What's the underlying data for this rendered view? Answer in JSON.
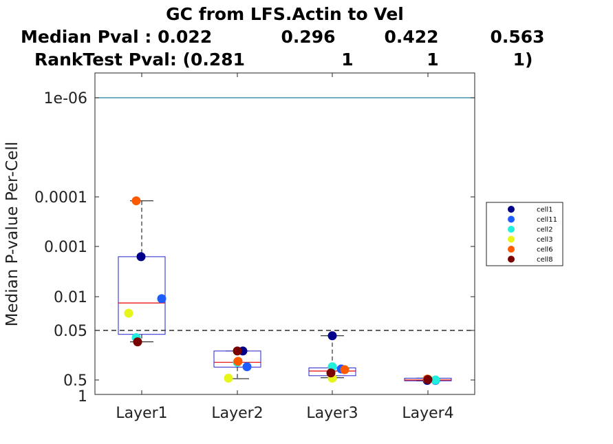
{
  "title_lines": [
    "GC from LFS.Actin to Vel",
    "Median Pval : 0.022",
    "0.296",
    "0.422",
    "0.563",
    "RankTest Pval: (0.281",
    "1",
    "1",
    "1)"
  ],
  "chart_data": {
    "type": "box",
    "title": "GC from LFS.Actin to Vel",
    "median_pval_label": "Median Pval :",
    "median_pvals": [
      "0.022",
      "0.296",
      "0.422",
      "0.563"
    ],
    "ranktest_label": "RankTest Pval:",
    "ranktest_pvals": [
      "(0.281",
      "1",
      "1",
      "1)"
    ],
    "ylabel": "Median P-value Per-Cell",
    "xlabel": "",
    "y_scale": "log (reversed)",
    "ylim": [
      1,
      3e-07
    ],
    "yticks": [
      {
        "label": "1e-06",
        "value": 1e-06
      },
      {
        "label": "0.0001",
        "value": 0.0001
      },
      {
        "label": "0.001",
        "value": 0.001
      },
      {
        "label": "0.01",
        "value": 0.01
      },
      {
        "label": "0.05",
        "value": 0.05
      },
      {
        "label": "0.5",
        "value": 0.5
      },
      {
        "label": "1",
        "value": 1
      }
    ],
    "categories": [
      "Layer1",
      "Layer2",
      "Layer3",
      "Layer4"
    ],
    "reference_lines": [
      {
        "value": 1e-06,
        "style": "solid",
        "color": "#1a7f9c"
      },
      {
        "value": 0.05,
        "style": "dashed",
        "color": "#000000"
      }
    ],
    "boxes": [
      {
        "category": "Layer1",
        "q1": 0.0016,
        "median": 0.0135,
        "q3": 0.06,
        "whisker_low": 0.00012,
        "whisker_high": 0.085
      },
      {
        "category": "Layer2",
        "q1": 0.13,
        "median": 0.22,
        "q3": 0.275,
        "whisker_low": 0.13,
        "whisker_high": 0.47
      },
      {
        "category": "Layer3",
        "q1": 0.285,
        "median": 0.33,
        "q3": 0.41,
        "whisker_low": 0.064,
        "whisker_high": 0.45
      },
      {
        "category": "Layer4",
        "q1": 0.46,
        "median": 0.5,
        "q3": 0.52,
        "whisker_low": 0.46,
        "whisker_high": 0.52
      }
    ],
    "series": [
      {
        "name": "cell1",
        "color": "#00008b",
        "values": [
          0.0016,
          0.13,
          0.064,
          0.51
        ]
      },
      {
        "name": "cell11",
        "color": "#1f5cff",
        "values": [
          0.011,
          0.27,
          0.3,
          0.51
        ]
      },
      {
        "name": "cell2",
        "color": "#22eedd",
        "values": [
          0.07,
          0.22,
          0.27,
          0.5
        ]
      },
      {
        "name": "cell3",
        "color": "#e8f51a",
        "values": [
          0.022,
          0.46,
          0.46,
          0.48
        ]
      },
      {
        "name": "cell6",
        "color": "#ff5a00",
        "values": [
          0.00012,
          0.21,
          0.31,
          0.48
        ]
      },
      {
        "name": "cell8",
        "color": "#7a0000",
        "values": [
          0.085,
          0.13,
          0.36,
          0.49
        ]
      }
    ],
    "legend": {
      "position": "right",
      "entries": [
        "cell1",
        "cell11",
        "cell2",
        "cell3",
        "cell6",
        "cell8"
      ]
    }
  }
}
